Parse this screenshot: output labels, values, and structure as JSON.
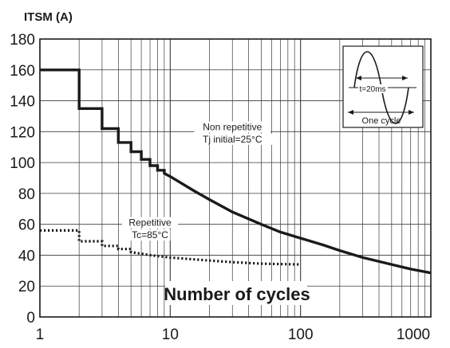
{
  "chart_data": {
    "type": "line",
    "title": "",
    "ylabel": "ITSM (A)",
    "xlabel": "Number of cycles",
    "x_scale": "log",
    "xlim": [
      1,
      1000
    ],
    "ylim": [
      0,
      180
    ],
    "x_ticks": [
      1,
      10,
      100,
      1000
    ],
    "x_tick_labels": [
      "1",
      "10",
      "100",
      "1000"
    ],
    "y_ticks": [
      0,
      20,
      40,
      60,
      80,
      100,
      120,
      140,
      160,
      180
    ],
    "y_tick_labels": [
      "0",
      "20",
      "40",
      "60",
      "80",
      "100",
      "120",
      "140",
      "160",
      "180"
    ],
    "grid": true,
    "series": [
      {
        "name": "Non repetitive Tj initial=25°C",
        "style": "solid",
        "points": [
          [
            1,
            160
          ],
          [
            2,
            160
          ],
          [
            2,
            135
          ],
          [
            3,
            135
          ],
          [
            3,
            122
          ],
          [
            4,
            122
          ],
          [
            4,
            113
          ],
          [
            5,
            113
          ],
          [
            5,
            107
          ],
          [
            6,
            107
          ],
          [
            6,
            102
          ],
          [
            7,
            102
          ],
          [
            7,
            98
          ],
          [
            8,
            98
          ],
          [
            8,
            95
          ],
          [
            9,
            95
          ],
          [
            9,
            93
          ],
          [
            10,
            91
          ],
          [
            15,
            82
          ],
          [
            20,
            76
          ],
          [
            30,
            68
          ],
          [
            50,
            60
          ],
          [
            70,
            55
          ],
          [
            100,
            51
          ],
          [
            150,
            46.5
          ],
          [
            200,
            43
          ],
          [
            300,
            38.5
          ],
          [
            500,
            34
          ],
          [
            700,
            31
          ],
          [
            1000,
            28.5
          ]
        ]
      },
      {
        "name": "Repetitive Tc=85°C",
        "style": "dotted",
        "points": [
          [
            1,
            56
          ],
          [
            2,
            56
          ],
          [
            2,
            49
          ],
          [
            3,
            49
          ],
          [
            3,
            46
          ],
          [
            4,
            46
          ],
          [
            4,
            44
          ],
          [
            5,
            44
          ],
          [
            5,
            42
          ],
          [
            7,
            40
          ],
          [
            10,
            38.5
          ],
          [
            20,
            36.5
          ],
          [
            30,
            35.5
          ],
          [
            50,
            34.5
          ],
          [
            100,
            34
          ]
        ]
      }
    ],
    "annotations": [
      {
        "text": "Non repetitive",
        "x": 30,
        "y": 121
      },
      {
        "text": "Tj initial=25°C",
        "x": 30,
        "y": 113
      },
      {
        "text": "Repetitive",
        "x": 7,
        "y": 59
      },
      {
        "text": "Tc=85°C",
        "x": 7,
        "y": 51
      }
    ],
    "inset": {
      "period_label": "t=20ms",
      "caption": "One cycle"
    },
    "colors": {
      "line": "#1a1a1a",
      "grid": "#3a3a3a",
      "background": "#ffffff"
    }
  }
}
